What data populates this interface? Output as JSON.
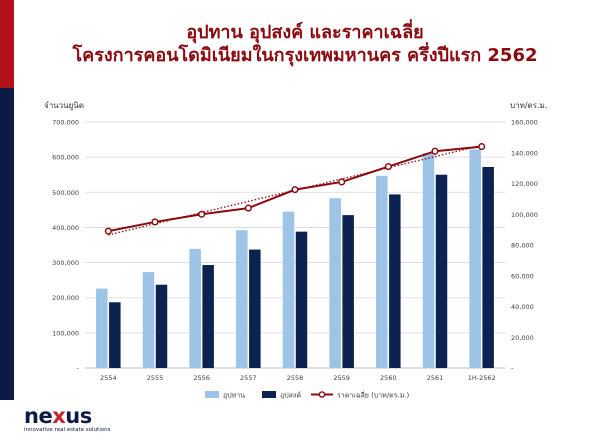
{
  "slide": {
    "title_line1": "อุปทาน อุปสงค์ และราคาเฉลี่ย",
    "title_line2": "โครงการคอนโดมิเนียมในกรุงเทพมหานคร ครึ่งปีแรก 2562"
  },
  "brand": {
    "logo_part1": "ne",
    "logo_part2": "x",
    "logo_part3": "us",
    "tagline": "innovative real estate solutions"
  },
  "colors": {
    "side_top": "#b3121b",
    "side_bottom": "#0c1a45",
    "title": "#8b0a0f",
    "supply": "#9dc3e6",
    "demand": "#0c2352",
    "price_line": "#8b0a0f"
  },
  "chart_data": {
    "type": "bar",
    "categories": [
      "2554",
      "2555",
      "2556",
      "2557",
      "2558",
      "2559",
      "2560",
      "2561",
      "1H-2562"
    ],
    "series": [
      {
        "name": "อุปทาน",
        "type": "bar",
        "axis": "left",
        "values": [
          226000,
          273000,
          339000,
          392000,
          445000,
          483000,
          547000,
          612000,
          622000
        ]
      },
      {
        "name": "อุปสงค์",
        "type": "bar",
        "axis": "left",
        "values": [
          187000,
          237000,
          293000,
          337000,
          388000,
          435000,
          494000,
          550000,
          572000
        ]
      },
      {
        "name": "ราคาเฉลี่ย (บาท/ตร.ม.)",
        "type": "line",
        "axis": "right",
        "values": [
          89000,
          95000,
          100000,
          104000,
          116000,
          121000,
          131000,
          141000,
          144000
        ]
      }
    ],
    "trendline": {
      "series": "ราคาเฉลี่ย (บาท/ตร.ม.)",
      "style": "dotted"
    },
    "ylabel_left": "จำนวนยูนิต",
    "ylabel_right": "บาท/ตร.ม.",
    "ylim_left": [
      0,
      700000
    ],
    "ylim_right": [
      0,
      160000
    ],
    "yticks_left": [
      "-",
      "100,000",
      "200,000",
      "300,000",
      "400,000",
      "500,000",
      "600,000",
      "700,000"
    ],
    "yticks_right": [
      "-",
      "20,000",
      "40,000",
      "60,000",
      "80,000",
      "100,000",
      "120,000",
      "140,000",
      "160,000"
    ],
    "grid": true,
    "legend_position": "bottom"
  }
}
